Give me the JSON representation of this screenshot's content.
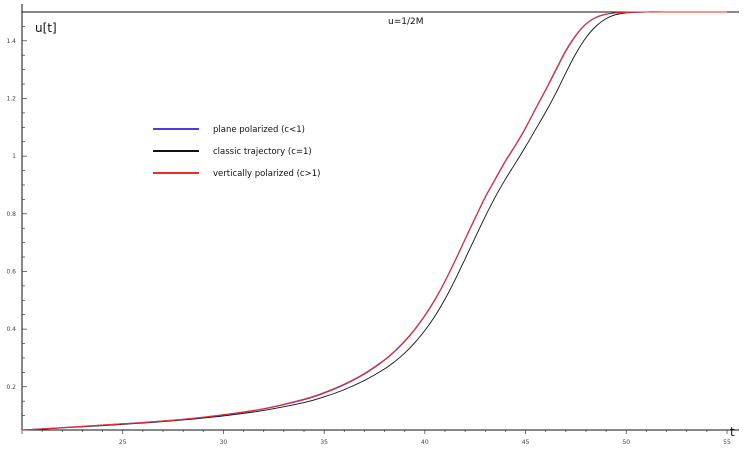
{
  "chart_data": {
    "type": "line",
    "title": "",
    "xlabel": "t",
    "ylabel": "u[t]",
    "xlim": [
      20,
      55
    ],
    "ylim": [
      0.05,
      1.5
    ],
    "grid": false,
    "legend_placement": "upper-left",
    "x_ticks": [
      {
        "value": 25,
        "label": "25"
      },
      {
        "value": 30,
        "label": "30"
      },
      {
        "value": 35,
        "label": "35"
      },
      {
        "value": 40,
        "label": "40"
      },
      {
        "value": 45,
        "label": "45"
      },
      {
        "value": 50,
        "label": "50"
      },
      {
        "value": 55,
        "label": "55"
      }
    ],
    "y_ticks": [
      {
        "value": 0.2,
        "label": "0.2"
      },
      {
        "value": 0.4,
        "label": "0.4"
      },
      {
        "value": 0.6,
        "label": "0.6"
      },
      {
        "value": 0.8,
        "label": "0.8"
      },
      {
        "value": 1.0,
        "label": "1"
      },
      {
        "value": 1.2,
        "label": "1.2"
      },
      {
        "value": 1.4,
        "label": "1.4"
      }
    ],
    "reference_line": {
      "y": 1.5,
      "label": "u=1/2M"
    },
    "series": [
      {
        "name": "plane polarized (c<1)",
        "color": "#4b3be0",
        "x": [
          20,
          22,
          24,
          26,
          28,
          30,
          32,
          34,
          35,
          36,
          37,
          38,
          38.5,
          39,
          39.5,
          40,
          40.5,
          41,
          41.5,
          42,
          42.5,
          43,
          43.5,
          44,
          44.5,
          45,
          45.5,
          46,
          46.5,
          47,
          47.5,
          48,
          48.5,
          49,
          49.5,
          50,
          51,
          52,
          55
        ],
        "y": [
          0.05,
          0.058,
          0.067,
          0.076,
          0.087,
          0.102,
          0.123,
          0.155,
          0.178,
          0.207,
          0.244,
          0.292,
          0.322,
          0.357,
          0.398,
          0.446,
          0.501,
          0.565,
          0.636,
          0.711,
          0.785,
          0.857,
          0.92,
          0.982,
          1.037,
          1.097,
          1.164,
          1.229,
          1.297,
          1.364,
          1.418,
          1.458,
          1.481,
          1.492,
          1.497,
          1.499,
          1.5,
          1.5,
          1.5
        ]
      },
      {
        "name": "classic trajectory (c=1)",
        "color": "#111111",
        "x": [
          20,
          22,
          24,
          26,
          28,
          30,
          32,
          34,
          35,
          36,
          37,
          38,
          38.5,
          39,
          39.5,
          40,
          40.5,
          41,
          41.5,
          42,
          42.5,
          43,
          43.5,
          44,
          44.5,
          45,
          45.5,
          46,
          46.5,
          47,
          47.5,
          48,
          48.5,
          49,
          49.5,
          50,
          50.5,
          51,
          52,
          55
        ],
        "y": [
          0.05,
          0.057,
          0.065,
          0.074,
          0.085,
          0.099,
          0.118,
          0.145,
          0.165,
          0.19,
          0.222,
          0.262,
          0.287,
          0.317,
          0.353,
          0.395,
          0.445,
          0.504,
          0.571,
          0.644,
          0.718,
          0.791,
          0.859,
          0.92,
          0.976,
          1.033,
          1.093,
          1.153,
          1.218,
          1.289,
          1.356,
          1.411,
          1.451,
          1.477,
          1.491,
          1.497,
          1.499,
          1.5,
          1.5,
          1.5
        ]
      },
      {
        "name": "vertically polarized (c>1)",
        "color": "#e8302a",
        "x": [
          20,
          22,
          24,
          26,
          28,
          30,
          32,
          34,
          35,
          36,
          37,
          38,
          38.5,
          39,
          39.5,
          40,
          40.5,
          41,
          41.5,
          42,
          42.5,
          43,
          43.5,
          44,
          44.5,
          45,
          45.5,
          46,
          46.5,
          47,
          47.5,
          48,
          48.5,
          49,
          49.5,
          50,
          51,
          52,
          55
        ],
        "y": [
          0.05,
          0.058,
          0.067,
          0.076,
          0.087,
          0.103,
          0.124,
          0.157,
          0.18,
          0.209,
          0.246,
          0.294,
          0.324,
          0.359,
          0.4,
          0.448,
          0.503,
          0.567,
          0.638,
          0.713,
          0.787,
          0.859,
          0.922,
          0.984,
          1.039,
          1.099,
          1.166,
          1.231,
          1.3,
          1.367,
          1.42,
          1.459,
          1.482,
          1.493,
          1.497,
          1.499,
          1.5,
          1.5,
          1.5
        ]
      }
    ]
  }
}
